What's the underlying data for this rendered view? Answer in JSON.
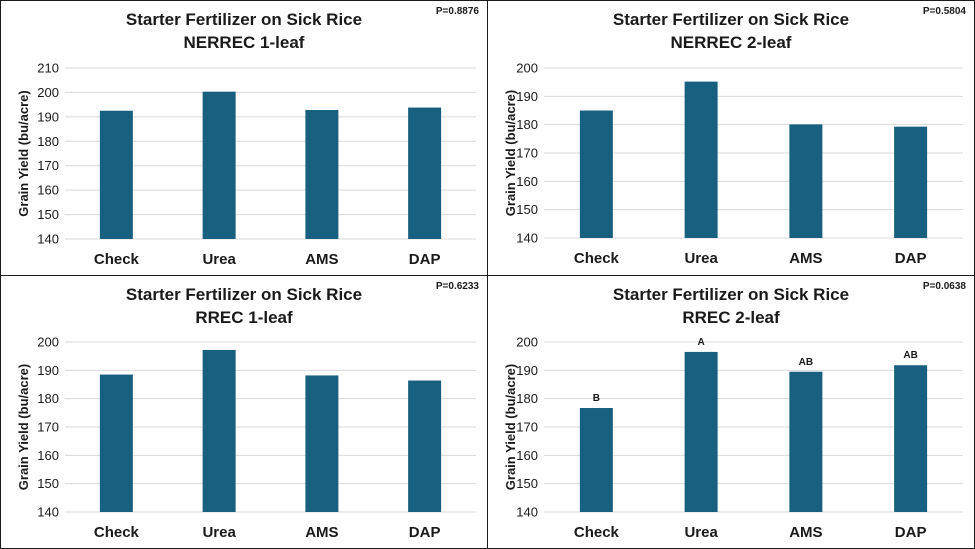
{
  "style": {
    "bar_color": "#17607f",
    "grid_color": "#d9d9d9",
    "border_color": "#1a1a1a"
  },
  "chart_data": [
    {
      "type": "bar",
      "title": "Starter Fertilizer on Sick Rice",
      "subtitle": "NERREC 1-leaf",
      "p_value": "P=0.8876",
      "xlabel": "",
      "ylabel": "Grain Yield (bu/acre)",
      "categories": [
        "Check",
        "Urea",
        "AMS",
        "DAP"
      ],
      "values": [
        192.5,
        200.3,
        192.8,
        193.8
      ],
      "ylim": [
        140,
        210
      ],
      "yticks": [
        140,
        150,
        160,
        170,
        180,
        190,
        200,
        210
      ],
      "grid": true,
      "labels": []
    },
    {
      "type": "bar",
      "title": "Starter Fertilizer on Sick Rice",
      "subtitle": "NERREC 2-leaf",
      "p_value": "P=0.5804",
      "xlabel": "",
      "ylabel": "Grain Yield (bu/acre)",
      "categories": [
        "Check",
        "Urea",
        "AMS",
        "DAP"
      ],
      "values": [
        185.0,
        195.2,
        180.1,
        179.3
      ],
      "ylim": [
        140,
        200
      ],
      "yticks": [
        140,
        150,
        160,
        170,
        180,
        190,
        200
      ],
      "grid": true,
      "labels": []
    },
    {
      "type": "bar",
      "title": "Starter Fertilizer on Sick Rice",
      "subtitle": "RREC 1-leaf",
      "p_value": "P=0.6233",
      "xlabel": "",
      "ylabel": "Grain Yield (bu/acre)",
      "categories": [
        "Check",
        "Urea",
        "AMS",
        "DAP"
      ],
      "values": [
        188.5,
        197.2,
        188.2,
        186.4
      ],
      "ylim": [
        140,
        200
      ],
      "yticks": [
        140,
        150,
        160,
        170,
        180,
        190,
        200
      ],
      "grid": true,
      "labels": []
    },
    {
      "type": "bar",
      "title": "Starter Fertilizer on Sick Rice",
      "subtitle": "RREC 2-leaf",
      "p_value": "P=0.0638",
      "xlabel": "",
      "ylabel": "Grain Yield (bu/acre)",
      "categories": [
        "Check",
        "Urea",
        "AMS",
        "DAP"
      ],
      "values": [
        176.7,
        196.5,
        189.5,
        191.8
      ],
      "ylim": [
        140,
        200
      ],
      "yticks": [
        140,
        150,
        160,
        170,
        180,
        190,
        200
      ],
      "grid": true,
      "labels": [
        "B",
        "A",
        "AB",
        "AB"
      ]
    }
  ]
}
